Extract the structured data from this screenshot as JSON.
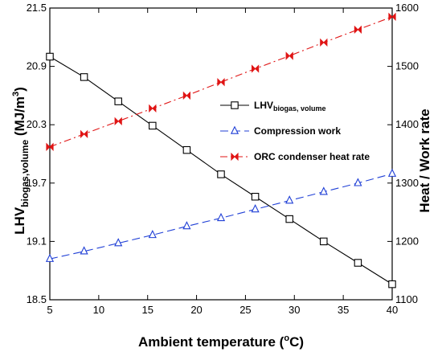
{
  "chart_data": {
    "type": "line",
    "x": [
      5,
      8.5,
      12,
      15.5,
      19,
      22.5,
      26,
      29.5,
      33,
      36.5,
      40
    ],
    "xlim": [
      5,
      40
    ],
    "xticks": [
      "5",
      "10",
      "15",
      "20",
      "25",
      "30",
      "35",
      "40"
    ],
    "xlabel": {
      "main": "Ambient temperature (",
      "sup": "o",
      "sub": "",
      "tail": "C)"
    },
    "ylabel_left": {
      "main": "LHV",
      "sub": "biogas,volume",
      "mid": " (MJ/m",
      "sup": "3",
      "tail": ")"
    },
    "ylabel_right": "Heat / Work rate",
    "ylim_left": [
      18.5,
      21.5
    ],
    "yticks_left": [
      "18.5",
      "19.1",
      "19.7",
      "20.3",
      "20.9",
      "21.5"
    ],
    "ylim_right": [
      1100,
      1600
    ],
    "yticks_right": [
      "1100",
      "1200",
      "1300",
      "1400",
      "1500",
      "1600"
    ],
    "grid": false,
    "legend_position": "center-right",
    "series": [
      {
        "name": "LHV",
        "name_sub": "biogas, volume",
        "axis": "left",
        "color": "#000000",
        "marker": "square",
        "dash": "solid",
        "values": [
          21.0,
          20.79,
          20.54,
          20.29,
          20.04,
          19.79,
          19.56,
          19.33,
          19.1,
          18.88,
          18.66
        ]
      },
      {
        "name": "Compression work",
        "name_sub": "",
        "axis": "right",
        "color": "#1f3fd6",
        "marker": "triangle",
        "dash": "long-dash",
        "values": [
          1170,
          1183,
          1197,
          1211,
          1226,
          1240,
          1255,
          1270,
          1285,
          1300,
          1316
        ]
      },
      {
        "name": "ORC condenser heat rate",
        "name_sub": "",
        "axis": "right",
        "color": "#e01515",
        "marker": "bowtie",
        "dash": "dash-dot",
        "values": [
          1362,
          1384,
          1406,
          1428,
          1450,
          1473,
          1496,
          1518,
          1541,
          1563,
          1585
        ]
      }
    ]
  }
}
